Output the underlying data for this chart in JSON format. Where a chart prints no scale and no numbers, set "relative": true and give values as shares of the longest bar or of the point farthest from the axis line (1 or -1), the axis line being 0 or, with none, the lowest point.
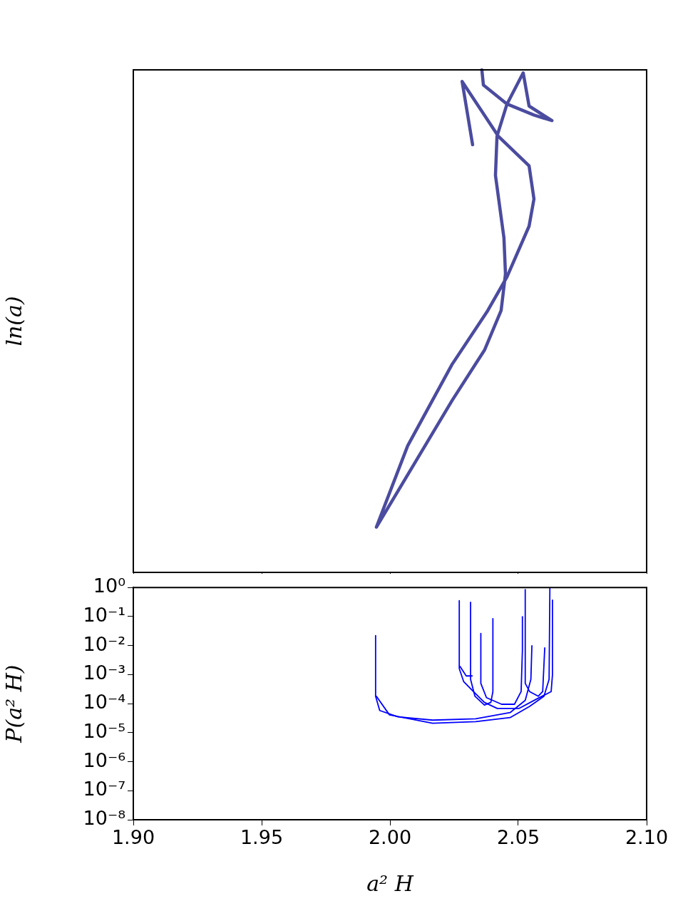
{
  "chart_data": [
    {
      "type": "line",
      "ylabel": "ln(a)",
      "relative": true,
      "xlim": [
        1.9,
        2.1
      ],
      "xticks": [
        1.9,
        1.95,
        2.0,
        2.05,
        2.1
      ],
      "tick_labels": false,
      "marker": "none",
      "line_style": "solid",
      "series": [
        {
          "color": "#4b4b9f",
          "x": [
            2.0322,
            2.0281,
            2.0422,
            2.0542,
            2.0561,
            2.0542,
            2.0456,
            2.0381,
            2.0242,
            2.0069,
            1.9947,
            2.0242,
            2.0369,
            2.0433,
            2.045,
            2.0444,
            2.0411,
            2.0417,
            2.0456,
            2.0519,
            2.0542,
            2.0631,
            2.0561,
            2.0456,
            2.0364,
            2.0358
          ],
          "values": [
            0.851,
            0.977,
            0.868,
            0.809,
            0.743,
            0.689,
            0.588,
            0.521,
            0.414,
            0.252,
            0.09,
            0.342,
            0.443,
            0.521,
            0.594,
            0.666,
            0.79,
            0.868,
            0.932,
            0.994,
            0.928,
            0.899,
            0.91,
            0.932,
            0.97,
            1
          ]
        }
      ]
    },
    {
      "type": "line",
      "xlabel": "a² H",
      "ylabel": "P(a² H)",
      "log": "y",
      "xlim": [
        1.9,
        2.1
      ],
      "xticks": [
        {
          "value": 1.9,
          "label": "1.90"
        },
        {
          "value": 1.95,
          "label": "1.95"
        },
        {
          "value": 2.0,
          "label": "2.00"
        },
        {
          "value": 2.05,
          "label": "2.05"
        },
        {
          "value": 2.1,
          "label": "2.10"
        }
      ],
      "ylim": [
        1e-08,
        1
      ],
      "yticks": [
        {
          "value": 1e-08,
          "label": "10⁻⁸"
        },
        {
          "value": 1e-07,
          "label": "10⁻⁷"
        },
        {
          "value": 1e-06,
          "label": "10⁻⁶"
        },
        {
          "value": 1e-05,
          "label": "10⁻⁵"
        },
        {
          "value": 0.0001,
          "label": "10⁻⁴"
        },
        {
          "value": 0.001,
          "label": "10⁻³"
        },
        {
          "value": 0.01,
          "label": "10⁻²"
        },
        {
          "value": 0.1,
          "label": "10⁻¹"
        },
        {
          "value": 1,
          "label": "10⁰"
        }
      ],
      "marker": "none",
      "line_style": "solid",
      "series": [
        {
          "color": "#0000ff",
          "x": [
            1.9944,
            1.9944,
            1.996,
            2.0031,
            2.0166,
            2.0334,
            2.0468,
            2.0527,
            2.0549,
            2.0553
          ],
          "values": [
            0.022,
            0.00018,
            5.8e-05,
            3.5e-05,
            2.7e-05,
            3e-05,
            4.9e-05,
            0.00013,
            0.00069,
            0.0098
          ]
        },
        {
          "color": "#0000ff",
          "x": [
            1.9947,
            1.9998,
            2.0166,
            2.0334,
            2.0468,
            2.0544,
            2.06,
            2.062,
            2.0623
          ],
          "values": [
            0.00018,
            4.1e-05,
            2.1e-05,
            2.4e-05,
            3.3e-05,
            8e-05,
            0.00018,
            0.00069,
            0.94
          ]
        },
        {
          "color": "#0000ff",
          "x": [
            2.027,
            2.027,
            2.0287,
            2.0325,
            2.0368,
            2.0418,
            2.0502,
            2.0569,
            2.0628,
            2.0633,
            2.0633
          ],
          "values": [
            0.35,
            0.0016,
            0.00058,
            0.00026,
            0.00011,
            6.8e-05,
            6.8e-05,
            0.00014,
            0.00026,
            0.00096,
            0.37
          ]
        },
        {
          "color": "#0000ff",
          "x": [
            2.0314,
            2.0314,
            2.0331,
            2.0368,
            2.0393,
            2.0401,
            2.0401
          ],
          "values": [
            0.31,
            0.00069,
            0.00018,
            8.9e-05,
            0.00011,
            0.00026,
            0.084
          ]
        },
        {
          "color": "#0000ff",
          "x": [
            2.0354,
            2.0354,
            2.0376,
            2.0435,
            2.0485,
            2.0511,
            2.0516,
            2.0516
          ],
          "values": [
            0.026,
            0.0005,
            0.00016,
            9.5e-05,
            9.5e-05,
            0.00026,
            0.007,
            0.099
          ]
        },
        {
          "color": "#0000ff",
          "x": [
            2.0527,
            2.0527,
            2.0544,
            2.0578,
            2.0595,
            2.0603
          ],
          "values": [
            0.85,
            0.0005,
            0.00026,
            0.00018,
            0.00026,
            0.0083
          ]
        },
        {
          "color": "#0000ff",
          "x": [
            2.0273,
            2.0297,
            2.032
          ],
          "values": [
            0.0019,
            0.0009,
            0.0009
          ]
        }
      ]
    }
  ]
}
